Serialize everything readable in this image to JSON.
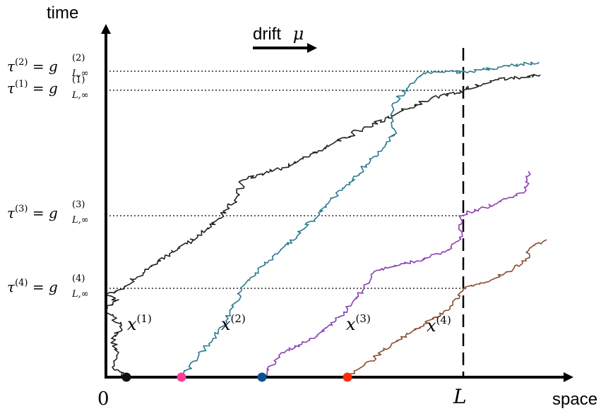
{
  "axes": {
    "y_label": "time",
    "x_label": "space",
    "origin_label": "0",
    "L_label": "L"
  },
  "drift": {
    "label": "drift",
    "symbol": "μ"
  },
  "levels": [
    {
      "tau_sup": "(2)",
      "g_sup": "(2)",
      "g_sub": "L,∞"
    },
    {
      "tau_sup": "(1)",
      "g_sup": "(1)",
      "g_sub": "L,∞"
    },
    {
      "tau_sup": "(3)",
      "g_sup": "(3)",
      "g_sub": "L,∞"
    },
    {
      "tau_sup": "(4)",
      "g_sup": "(4)",
      "g_sub": "L,∞"
    }
  ],
  "paths": [
    {
      "label": "x",
      "sup": "(1)",
      "color": "#222222"
    },
    {
      "label": "x",
      "sup": "(2)",
      "color": "#2b7a8e"
    },
    {
      "label": "x",
      "sup": "(3)",
      "color": "#8a3fb0"
    },
    {
      "label": "x",
      "sup": "(4)",
      "color": "#8a4a2e"
    }
  ],
  "start_points": [
    {
      "color": "#111111"
    },
    {
      "color": "#ff3d9a"
    },
    {
      "color": "#0d4f94"
    },
    {
      "color": "#ff2a0a"
    }
  ]
}
